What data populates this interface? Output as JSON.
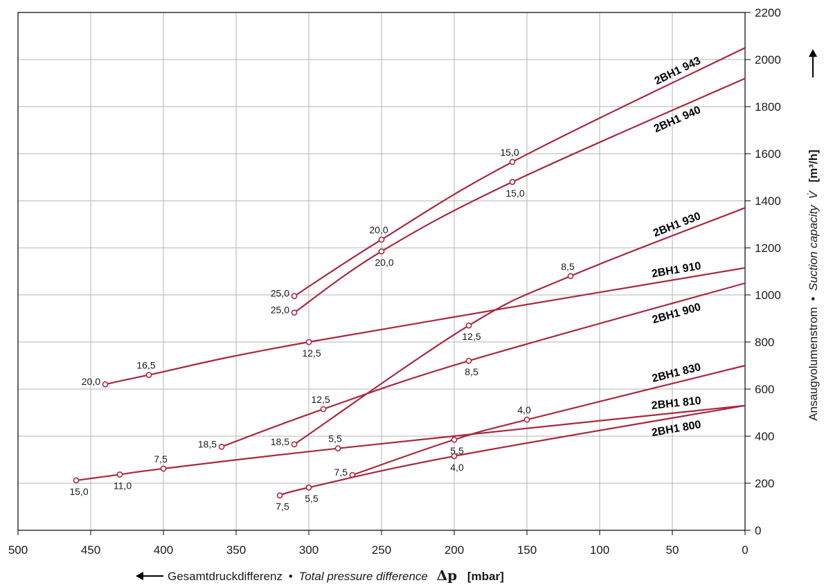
{
  "chart_data": {
    "type": "line",
    "xlabel": {
      "prefix": "Gesamtdruckdifferenz",
      "sep": "•",
      "italic": "Total pressure difference",
      "symbol": "Δp",
      "unit": "[mbar]"
    },
    "ylabel": {
      "prefix": "Ansaugvolumenstrom",
      "sep": "•",
      "italic": "Suction capacity",
      "symbol": "V̇",
      "unit": "[m³/h]"
    },
    "xlim": [
      500,
      0
    ],
    "ylim": [
      0,
      2200
    ],
    "x_ticks": [
      "500",
      "450",
      "400",
      "350",
      "300",
      "250",
      "200",
      "150",
      "100",
      "50",
      "0"
    ],
    "y_ticks": [
      "0",
      "200",
      "400",
      "600",
      "800",
      "1000",
      "1200",
      "1400",
      "1600",
      "1800",
      "2000",
      "2200"
    ],
    "x_tick_values": [
      500,
      450,
      400,
      350,
      300,
      250,
      200,
      150,
      100,
      50,
      0
    ],
    "y_tick_values": [
      0,
      200,
      400,
      600,
      800,
      1000,
      1200,
      1400,
      1600,
      1800,
      2000,
      2200
    ],
    "grid": true,
    "line_color": "#a8283c",
    "series": [
      {
        "name": "2BH1 943",
        "points": [
          [
            310,
            995
          ],
          [
            250,
            1235
          ],
          [
            160,
            1565
          ],
          [
            0,
            2050
          ]
        ],
        "markers": [
          {
            "x": 310,
            "y": 995,
            "label": "25,0",
            "pos": "left"
          },
          {
            "x": 250,
            "y": 1235,
            "label": "20,0",
            "pos": "above"
          },
          {
            "x": 160,
            "y": 1565,
            "label": "15,0",
            "pos": "above"
          }
        ]
      },
      {
        "name": "2BH1 940",
        "points": [
          [
            310,
            925
          ],
          [
            250,
            1185
          ],
          [
            160,
            1480
          ],
          [
            0,
            1920
          ]
        ],
        "markers": [
          {
            "x": 310,
            "y": 925,
            "label": "25,0",
            "pos": "left"
          },
          {
            "x": 250,
            "y": 1185,
            "label": "20,0",
            "pos": "below"
          },
          {
            "x": 160,
            "y": 1480,
            "label": "15,0",
            "pos": "below"
          }
        ]
      },
      {
        "name": "2BH1 930",
        "points": [
          [
            310,
            365
          ],
          [
            190,
            870
          ],
          [
            120,
            1080
          ],
          [
            0,
            1370
          ]
        ],
        "markers": [
          {
            "x": 310,
            "y": 365,
            "label": "18,5",
            "pos": "left"
          },
          {
            "x": 190,
            "y": 870,
            "label": "12,5",
            "pos": "below"
          },
          {
            "x": 120,
            "y": 1080,
            "label": "8,5",
            "pos": "above"
          }
        ]
      },
      {
        "name": "2BH1 910",
        "points": [
          [
            440,
            620
          ],
          [
            410,
            660
          ],
          [
            300,
            800
          ],
          [
            0,
            1115
          ]
        ],
        "markers": [
          {
            "x": 440,
            "y": 620,
            "label": "20,0",
            "pos": "left"
          },
          {
            "x": 410,
            "y": 660,
            "label": "16,5",
            "pos": "above"
          },
          {
            "x": 300,
            "y": 800,
            "label": "12,5",
            "pos": "below"
          }
        ]
      },
      {
        "name": "2BH1 900",
        "points": [
          [
            360,
            355
          ],
          [
            290,
            515
          ],
          [
            190,
            720
          ],
          [
            0,
            1050
          ]
        ],
        "markers": [
          {
            "x": 360,
            "y": 355,
            "label": "18,5",
            "pos": "left"
          },
          {
            "x": 290,
            "y": 515,
            "label": "12,5",
            "pos": "above"
          },
          {
            "x": 190,
            "y": 720,
            "label": "8,5",
            "pos": "below"
          }
        ]
      },
      {
        "name": "2BH1 830",
        "points": [
          [
            270,
            235
          ],
          [
            200,
            385
          ],
          [
            150,
            470
          ],
          [
            0,
            700
          ]
        ],
        "markers": [
          {
            "x": 270,
            "y": 235,
            "label": "7,5",
            "pos": "left"
          },
          {
            "x": 200,
            "y": 385,
            "label": "5,5",
            "pos": "below"
          },
          {
            "x": 150,
            "y": 470,
            "label": "4,0",
            "pos": "above"
          }
        ]
      },
      {
        "name": "2BH1 810",
        "points": [
          [
            460,
            212
          ],
          [
            430,
            237
          ],
          [
            400,
            262
          ],
          [
            280,
            348
          ],
          [
            0,
            530
          ]
        ],
        "markers": [
          {
            "x": 460,
            "y": 212,
            "label": "15,0",
            "pos": "below"
          },
          {
            "x": 430,
            "y": 237,
            "label": "11,0",
            "pos": "below"
          },
          {
            "x": 400,
            "y": 262,
            "label": "7,5",
            "pos": "above"
          },
          {
            "x": 280,
            "y": 348,
            "label": "5,5",
            "pos": "above"
          }
        ]
      },
      {
        "name": "2BH1 800",
        "points": [
          [
            320,
            148
          ],
          [
            300,
            182
          ],
          [
            200,
            315
          ],
          [
            0,
            530
          ]
        ],
        "markers": [
          {
            "x": 320,
            "y": 148,
            "label": "7,5",
            "pos": "below"
          },
          {
            "x": 300,
            "y": 182,
            "label": "5,5",
            "pos": "below"
          },
          {
            "x": 200,
            "y": 315,
            "label": "4,0",
            "pos": "below"
          }
        ]
      }
    ]
  }
}
